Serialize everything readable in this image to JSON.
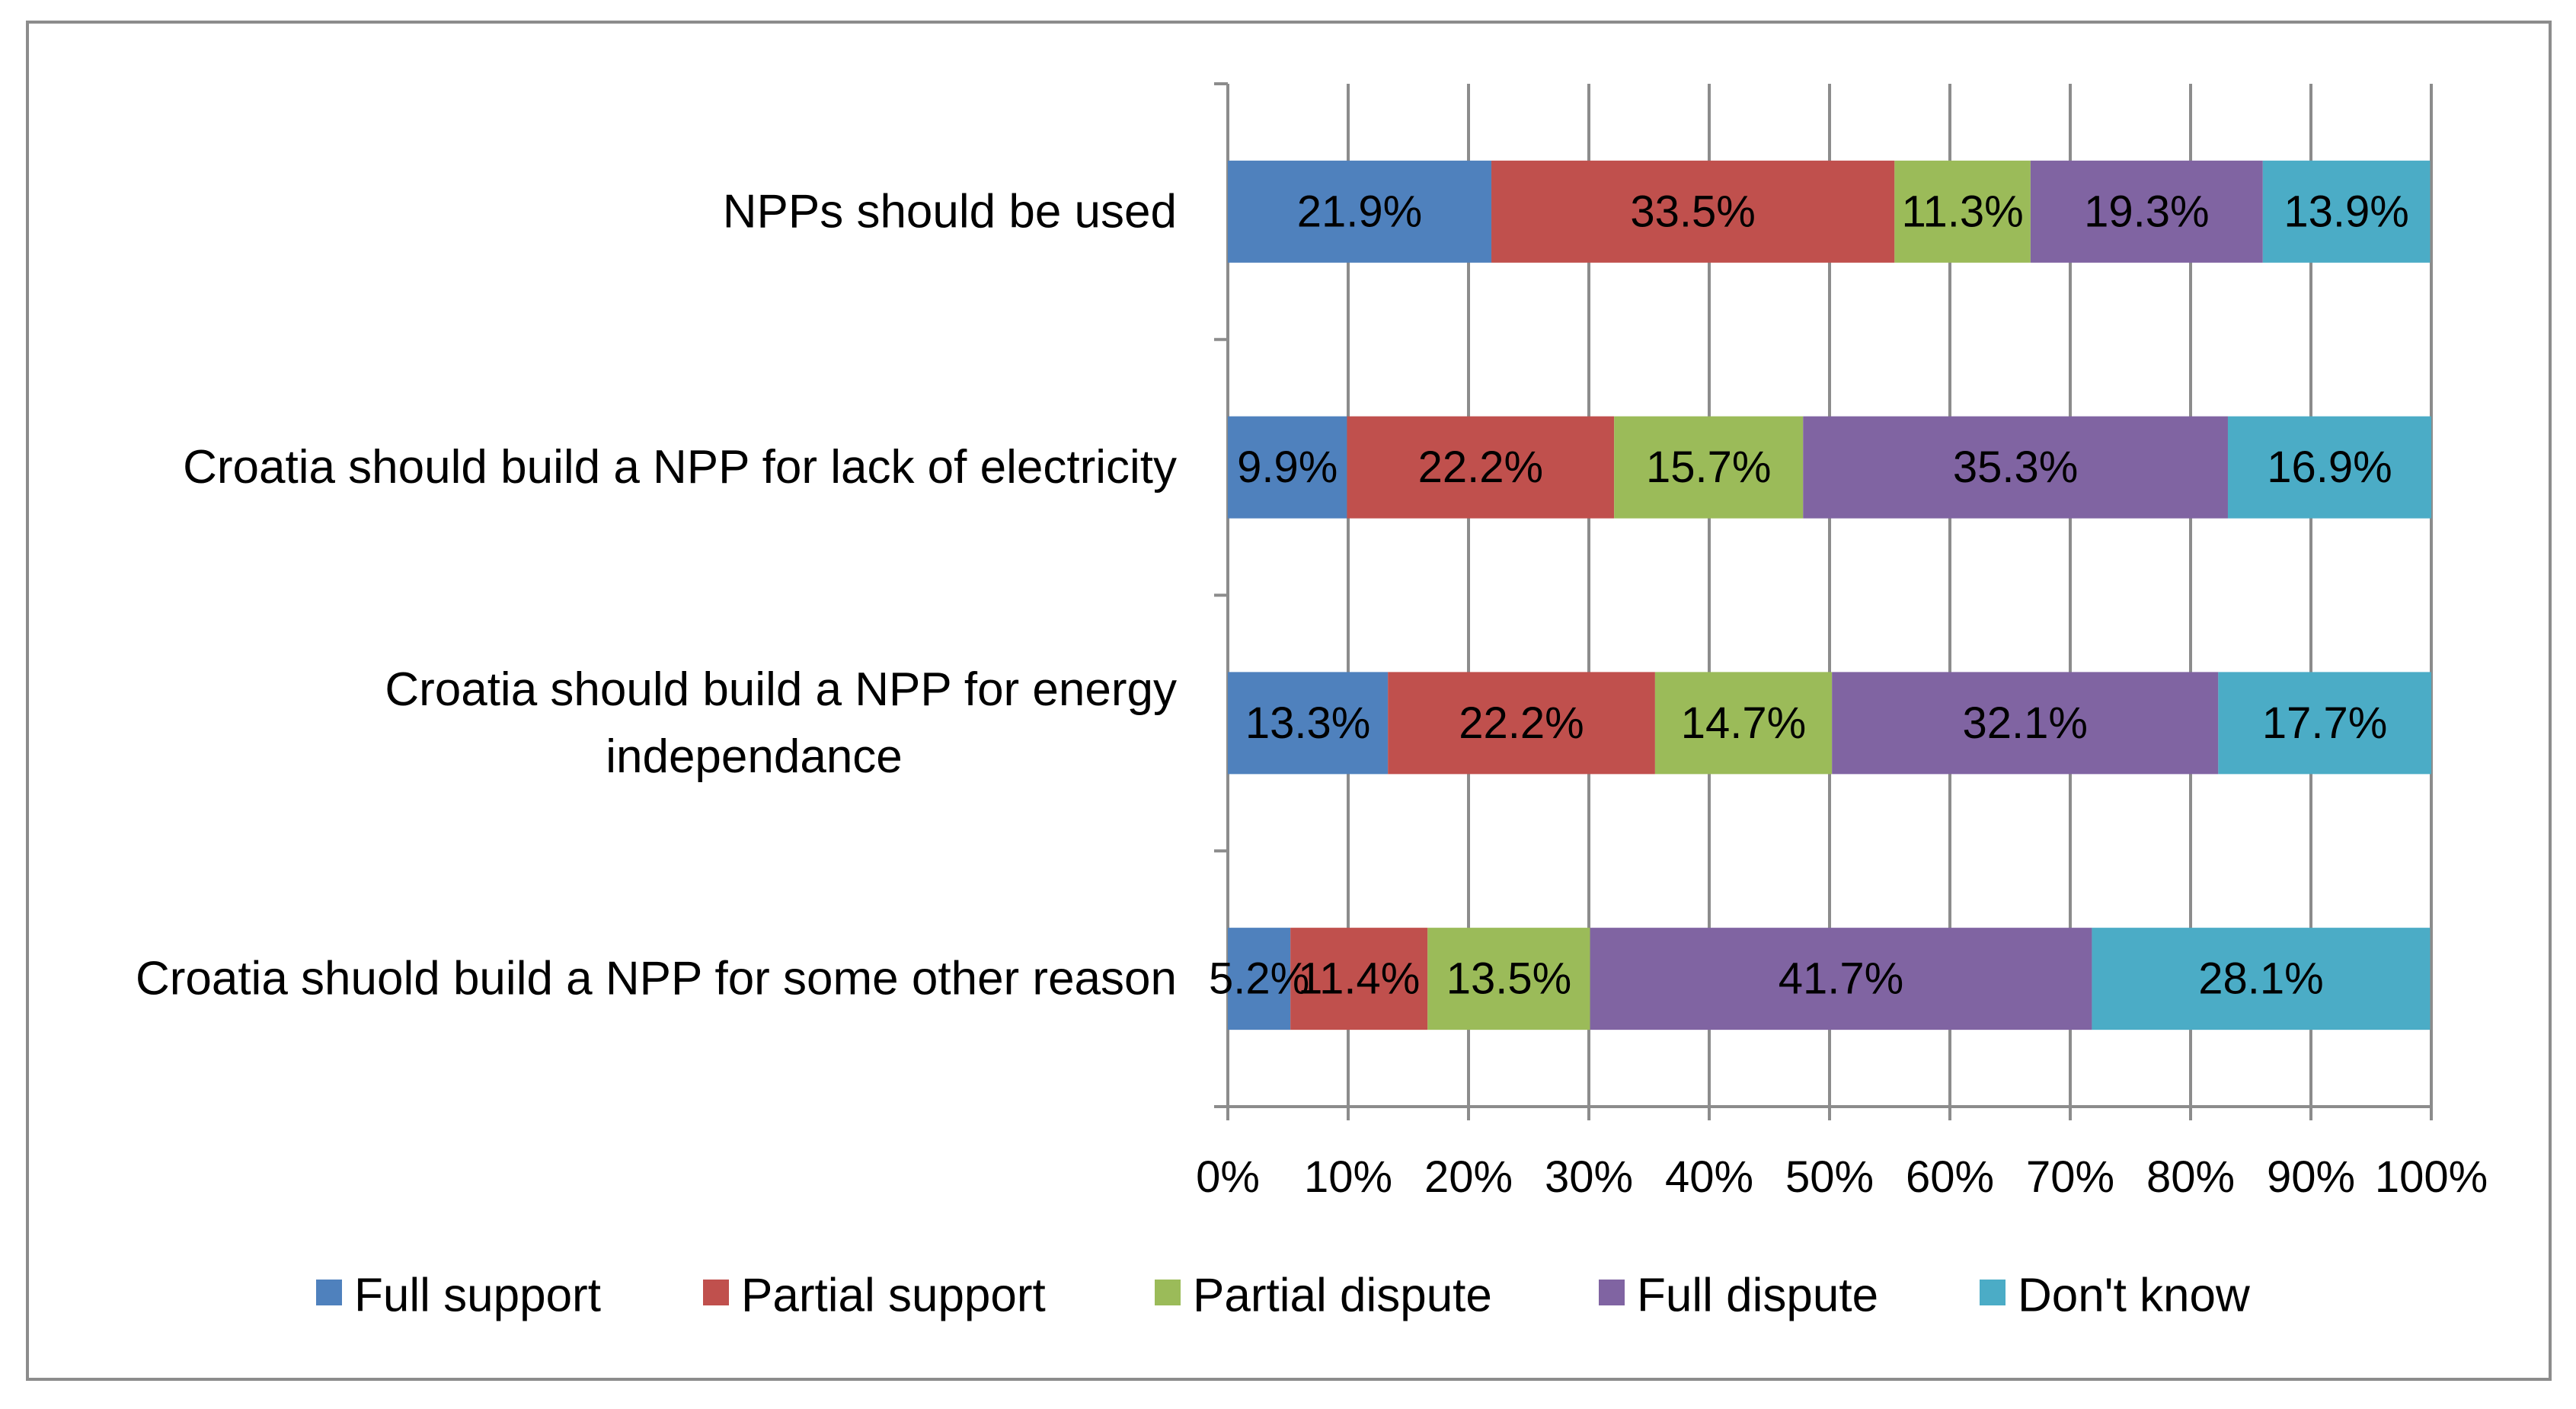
{
  "chart_data": {
    "type": "bar",
    "orientation": "horizontal",
    "stacked": "percent",
    "title": "",
    "xlabel": "",
    "ylabel": "",
    "xlim": [
      0,
      100
    ],
    "x_ticks": [
      "0%",
      "10%",
      "20%",
      "30%",
      "40%",
      "50%",
      "60%",
      "70%",
      "80%",
      "90%",
      "100%"
    ],
    "grid": true,
    "legend_position": "bottom",
    "categories": [
      [
        "NPPs should be used"
      ],
      [
        "Croatia should build a NPP for lack of electricity"
      ],
      [
        "Croatia should build a NPP for energy",
        "independance"
      ],
      [
        "Croatia shuold build a NPP for some other reason"
      ]
    ],
    "series": [
      {
        "name": "Full support",
        "color": "#4F81BD",
        "values": [
          21.9,
          9.9,
          13.3,
          5.2
        ],
        "labels": [
          "21.9%",
          "9.9%",
          "13.3%",
          "5.2%"
        ]
      },
      {
        "name": "Partial support",
        "color": "#C0504D",
        "values": [
          33.5,
          22.2,
          22.2,
          11.4
        ],
        "labels": [
          "33.5%",
          "22.2%",
          "22.2%",
          "11.4%"
        ]
      },
      {
        "name": "Partial dispute",
        "color": "#9BBB59",
        "values": [
          11.3,
          15.7,
          14.7,
          13.5
        ],
        "labels": [
          "11.3%",
          "15.7%",
          "14.7%",
          "13.5%"
        ]
      },
      {
        "name": "Full dispute",
        "color": "#8064A2",
        "values": [
          19.3,
          35.3,
          32.1,
          41.7
        ],
        "labels": [
          "19.3%",
          "35.3%",
          "32.1%",
          "41.7%"
        ]
      },
      {
        "name": "Don't know",
        "color": "#4BACC6",
        "values": [
          13.9,
          16.9,
          17.7,
          28.1
        ],
        "labels": [
          "13.9%",
          "16.9%",
          "17.7%",
          "28.1%"
        ]
      }
    ],
    "style": {
      "grid_color": "#8c8c8c",
      "frame_color": "#8c8c8c"
    }
  }
}
